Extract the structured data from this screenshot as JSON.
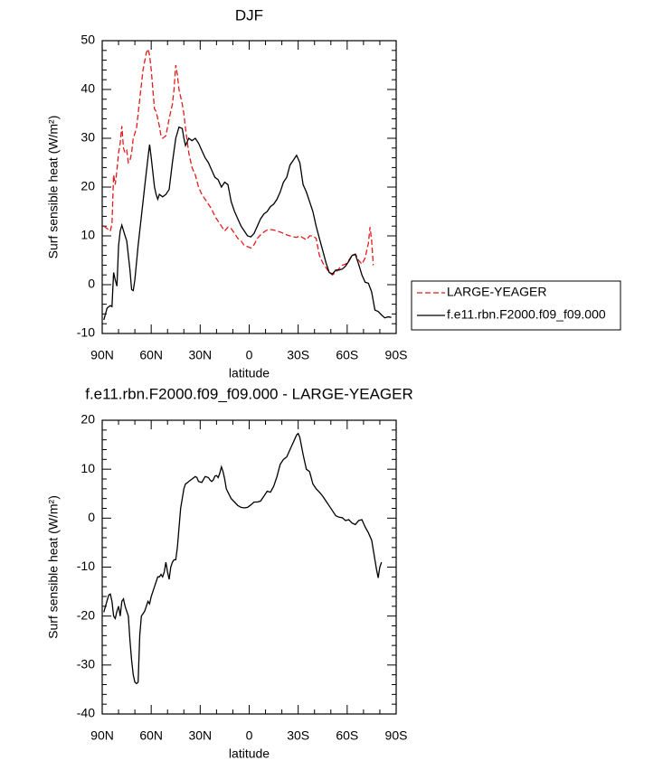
{
  "chart_data": [
    {
      "type": "line",
      "title": "DJF",
      "xlabel": "latitude",
      "ylabel": "Surf sensible heat (W/m²)",
      "xlim": [
        90,
        -90
      ],
      "xticks": [
        {
          "value": 90,
          "label": "90N"
        },
        {
          "value": 60,
          "label": "60N"
        },
        {
          "value": 30,
          "label": "30N"
        },
        0,
        {
          "value": -30,
          "label": "30S"
        },
        {
          "value": -60,
          "label": "60S"
        },
        {
          "value": -90,
          "label": "90S"
        }
      ],
      "ylim": [
        -10,
        50
      ],
      "yticks": [
        -10,
        0,
        10,
        20,
        30,
        40,
        50
      ],
      "legend": "right",
      "series": [
        {
          "name": "LARGE-YEAGER",
          "color": "#e41a1c",
          "dash": true,
          "x": [
            89,
            87,
            85,
            84,
            83,
            82,
            81,
            80,
            79,
            78,
            77,
            76,
            75,
            74,
            73,
            72,
            71,
            69,
            67,
            65,
            63,
            62,
            61,
            60,
            59,
            58,
            57,
            56,
            55,
            54,
            53,
            51,
            49,
            47,
            46,
            45,
            44,
            43,
            41,
            40,
            39,
            37,
            35,
            33,
            31,
            29,
            27,
            25,
            23,
            21,
            19,
            17,
            15,
            13,
            11,
            9,
            7,
            5,
            3,
            1,
            -1,
            -3,
            -5,
            -7,
            -9,
            -11,
            -13,
            -15,
            -17,
            -19,
            -21,
            -23,
            -25,
            -27,
            -29,
            -31,
            -33,
            -35,
            -37,
            -39,
            -41,
            -43,
            -45,
            -47,
            -49,
            -51,
            -53,
            -55,
            -57,
            -59,
            -61,
            -63,
            -65,
            -67,
            -69,
            -71,
            -73,
            -74,
            -75,
            -76
          ],
          "values": [
            12,
            11.5,
            11,
            12.5,
            22.5,
            20.5,
            23.5,
            27,
            29,
            32.5,
            28,
            27,
            27.5,
            25,
            25.5,
            27,
            30,
            32,
            38,
            44,
            47.5,
            48.3,
            47,
            44,
            40,
            36,
            35.5,
            34,
            32.5,
            30.5,
            30,
            30.5,
            34,
            37,
            40,
            45,
            43,
            40,
            37,
            35,
            32,
            27,
            24,
            22.5,
            20,
            18.5,
            17.5,
            16.5,
            15.5,
            14,
            13,
            12,
            11,
            11.8,
            11.5,
            10.5,
            9.5,
            9,
            8,
            7.8,
            7.5,
            8.2,
            9.5,
            10.2,
            10.8,
            11.2,
            11.3,
            11.2,
            11,
            10.8,
            10.5,
            10.2,
            10,
            9.8,
            9.7,
            10,
            9.6,
            9.2,
            10,
            10,
            9.5,
            6,
            4.5,
            3.5,
            2.5,
            2,
            2.5,
            3.3,
            4,
            4.2,
            5,
            6,
            6.3,
            5,
            4.2,
            5.5,
            8.5,
            11.8,
            9,
            4
          ]
        },
        {
          "name": "f.e11.rbn.F2000.f09_f09.000",
          "color": "#000000",
          "dash": false,
          "x": [
            89,
            87,
            85,
            84,
            83,
            82,
            81,
            80,
            79,
            78,
            76,
            75,
            73,
            72,
            71,
            70,
            68,
            66,
            64,
            62,
            61,
            60,
            58,
            57,
            56,
            55,
            53,
            51,
            49,
            47,
            45,
            43,
            41,
            40,
            39,
            37,
            35,
            33,
            31,
            29,
            27,
            25,
            23,
            21,
            19,
            17,
            15,
            13,
            11,
            9,
            7,
            5,
            3,
            1,
            -1,
            -3,
            -5,
            -7,
            -9,
            -11,
            -13,
            -15,
            -17,
            -19,
            -21,
            -23,
            -25,
            -27,
            -29,
            -31,
            -33,
            -35,
            -37,
            -39,
            -41,
            -43,
            -45,
            -47,
            -49,
            -51,
            -53,
            -55,
            -57,
            -59,
            -61,
            -63,
            -65,
            -67,
            -69,
            -71,
            -73,
            -75,
            -77,
            -79,
            -81,
            -83,
            -85,
            -87
          ],
          "values": [
            -7.2,
            -4.8,
            -4.3,
            -4.5,
            2.5,
            1,
            -0.3,
            8,
            11,
            12.2,
            10,
            9,
            3,
            -1,
            -1.2,
            1,
            8,
            14,
            20,
            26,
            28.7,
            26,
            20,
            18.5,
            17.5,
            18.5,
            18,
            18.5,
            19.5,
            25,
            30,
            32.3,
            32,
            30,
            28.5,
            30,
            29.5,
            30,
            29,
            27.5,
            26,
            25,
            23.5,
            22,
            21.5,
            20,
            21,
            20.5,
            17,
            15,
            13.5,
            12,
            11,
            10,
            9.8,
            10.5,
            12,
            13.5,
            14.5,
            15,
            16,
            16.5,
            17.5,
            19,
            21,
            22,
            24.5,
            25.5,
            26.5,
            25,
            20.5,
            19,
            17,
            15,
            12,
            9.5,
            7,
            4.5,
            2.5,
            2.2,
            3,
            3,
            3.2,
            3.8,
            4.8,
            6,
            6.2,
            4.2,
            2,
            0.5,
            0.3,
            -1.5,
            -5.2,
            -5.5,
            -6.2,
            -6.8,
            -6.6,
            -6.7
          ]
        }
      ]
    },
    {
      "type": "line",
      "title": "f.e11.rbn.F2000.f09_f09.000 - LARGE-YEAGER",
      "xlabel": "latitude",
      "ylabel": "Surf sensible heat (W/m²)",
      "xlim": [
        90,
        -90
      ],
      "xticks": [
        {
          "value": 90,
          "label": "90N"
        },
        {
          "value": 60,
          "label": "60N"
        },
        {
          "value": 30,
          "label": "30N"
        },
        0,
        {
          "value": -30,
          "label": "30S"
        },
        {
          "value": -60,
          "label": "60S"
        },
        {
          "value": -90,
          "label": "90S"
        }
      ],
      "ylim": [
        -40,
        20
      ],
      "yticks": [
        -40,
        -30,
        -20,
        -10,
        0,
        10,
        20
      ],
      "series": [
        {
          "color": "#000000",
          "dash": false,
          "x": [
            89,
            88,
            86,
            85,
            84,
            83,
            82,
            81,
            80,
            79,
            78,
            77,
            76,
            74,
            73,
            72,
            71,
            70,
            69,
            68,
            67,
            66,
            65,
            64,
            63,
            62,
            61,
            60,
            59,
            58,
            57,
            56,
            55,
            54,
            53,
            52,
            51,
            50,
            49,
            48,
            47,
            46,
            45,
            44,
            43,
            42,
            41,
            40,
            39,
            38,
            37,
            35,
            33,
            32,
            31,
            29,
            27,
            25,
            24,
            23,
            22,
            21,
            20,
            19,
            18,
            17,
            16,
            15,
            14,
            13,
            11,
            9,
            7,
            5,
            3,
            1,
            -1,
            -3,
            -5,
            -7,
            -9,
            -11,
            -13,
            -15,
            -17,
            -19,
            -21,
            -23,
            -25,
            -27,
            -29,
            -30,
            -31,
            -33,
            -35,
            -37,
            -39,
            -41,
            -43,
            -45,
            -47,
            -49,
            -51,
            -53,
            -55,
            -57,
            -59,
            -61,
            -63,
            -65,
            -67,
            -69,
            -71,
            -73,
            -75,
            -77,
            -78,
            -79,
            -80,
            -81
          ],
          "values": [
            -19.2,
            -18,
            -15.7,
            -15.5,
            -17,
            -20,
            -20.5,
            -19,
            -18,
            -20,
            -17,
            -16.5,
            -18,
            -20,
            -25,
            -29,
            -32,
            -33.5,
            -33.8,
            -33.5,
            -24,
            -20,
            -19.5,
            -19,
            -18,
            -17,
            -17.5,
            -16,
            -15,
            -14,
            -13,
            -12,
            -12,
            -11.5,
            -12,
            -11,
            -9,
            -11,
            -12.5,
            -10,
            -9,
            -8.5,
            -8.5,
            -6,
            -2,
            2,
            4,
            6,
            7,
            7.2,
            7.5,
            8,
            8.5,
            8.3,
            7.5,
            7.3,
            8.5,
            8.3,
            7.8,
            7.5,
            7.8,
            8.6,
            8.7,
            8.3,
            9.2,
            10.5,
            9.5,
            8,
            6,
            5.3,
            4,
            3.3,
            2.6,
            2.2,
            2.1,
            2.2,
            2.7,
            3.3,
            3.3,
            3.5,
            4.5,
            5.5,
            5.3,
            6.5,
            8.5,
            11,
            12,
            12.5,
            14,
            15.5,
            17,
            17.3,
            16.5,
            13,
            10,
            9.5,
            7,
            6,
            5.3,
            4.5,
            3.5,
            2.5,
            1.5,
            0.5,
            0.2,
            0.1,
            -0.5,
            -0.3,
            -1,
            -1.3,
            -0.5,
            -0.3,
            -1.8,
            -3,
            -4.5,
            -8.5,
            -10.5,
            -12.2,
            -10,
            -9
          ]
        }
      ]
    }
  ]
}
